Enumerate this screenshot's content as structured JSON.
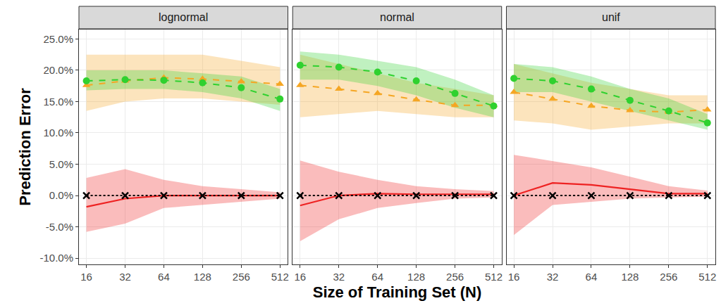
{
  "chart_data": {
    "type": "line",
    "x_label": "Size of Training Set (N)",
    "y_label": "Prediction Error",
    "x": [
      16,
      32,
      64,
      128,
      256,
      512
    ],
    "xlim": [
      14,
      590
    ],
    "xticks": [
      16,
      32,
      64,
      128,
      256,
      512
    ],
    "ylim": [
      -11,
      26.5
    ],
    "yticks": [
      {
        "value": -10,
        "label": "-10.0%"
      },
      {
        "value": -5,
        "label": "-5.0%"
      },
      {
        "value": 0,
        "label": "0.0%"
      },
      {
        "value": 5,
        "label": "5.0%"
      },
      {
        "value": 10,
        "label": "10.0%"
      },
      {
        "value": 15,
        "label": "15.0%"
      },
      {
        "value": 20,
        "label": "20.0%"
      },
      {
        "value": 25,
        "label": "25.0%"
      }
    ],
    "log": "x",
    "grid": true,
    "panels": [
      {
        "title": "lognormal",
        "series": [
          {
            "color": "#f5a623",
            "marker": "triangle",
            "line_style": "dashed",
            "values": [
              17.6,
              18.3,
              18.8,
              18.6,
              18.2,
              17.8
            ],
            "lower": [
              13.5,
              15.0,
              15.5,
              15.5,
              15.0,
              14.5
            ],
            "upper": [
              22.5,
              22.5,
              22.5,
              22.5,
              21.5,
              20.5
            ]
          },
          {
            "color": "#2fd12f",
            "marker": "circle",
            "line_style": "dashed",
            "values": [
              18.3,
              18.5,
              18.4,
              18.0,
              17.2,
              15.4
            ],
            "lower": [
              16.8,
              17.0,
              17.0,
              16.5,
              15.5,
              13.5
            ],
            "upper": [
              20.0,
              20.0,
              20.0,
              19.5,
              19.0,
              17.0
            ]
          },
          {
            "color": "#ee2222",
            "marker": "none",
            "line_style": "solid",
            "values": [
              -1.8,
              -0.5,
              0,
              0,
              0,
              0
            ],
            "lower": [
              -5.8,
              -4.5,
              -2.0,
              -1.5,
              -1.0,
              -0.5
            ],
            "upper": [
              2.8,
              4.2,
              2.5,
              1.5,
              1.0,
              0.5
            ]
          },
          {
            "color": "#000000",
            "marker": "x",
            "line_style": "dotted",
            "values": [
              0,
              0,
              0,
              0,
              0,
              0
            ]
          }
        ]
      },
      {
        "title": "normal",
        "series": [
          {
            "color": "#f5a623",
            "marker": "triangle",
            "line_style": "dashed",
            "values": [
              17.6,
              17.0,
              16.3,
              15.3,
              14.4,
              14.4
            ],
            "lower": [
              12.5,
              13.0,
              13.5,
              13.0,
              12.5,
              12.5
            ],
            "upper": [
              22.5,
              21.0,
              19.5,
              18.0,
              17.0,
              16.0
            ]
          },
          {
            "color": "#2fd12f",
            "marker": "circle",
            "line_style": "dashed",
            "values": [
              20.8,
              20.5,
              19.7,
              18.3,
              16.3,
              14.3
            ],
            "lower": [
              18.5,
              18.5,
              17.5,
              16.0,
              14.0,
              12.5
            ],
            "upper": [
              23.0,
              22.5,
              21.5,
              20.5,
              18.5,
              16.0
            ]
          },
          {
            "color": "#ee2222",
            "marker": "none",
            "line_style": "solid",
            "values": [
              -1.6,
              0,
              0.3,
              0.2,
              0.2,
              0.2
            ],
            "lower": [
              -7.3,
              -3.8,
              -2.0,
              -1.2,
              -0.5,
              -0.3
            ],
            "upper": [
              5.6,
              3.8,
              2.5,
              1.5,
              1.0,
              0.7
            ]
          },
          {
            "color": "#000000",
            "marker": "x",
            "line_style": "dotted",
            "values": [
              0,
              0,
              0,
              0,
              0,
              0
            ]
          }
        ]
      },
      {
        "title": "unif",
        "series": [
          {
            "color": "#f5a623",
            "marker": "triangle",
            "line_style": "dashed",
            "values": [
              16.5,
              15.4,
              14.3,
              13.6,
              13.3,
              13.7
            ],
            "lower": [
              12.0,
              11.5,
              10.5,
              11.0,
              11.5,
              11.5
            ],
            "upper": [
              21.0,
              19.5,
              18.0,
              17.0,
              16.0,
              16.0
            ]
          },
          {
            "color": "#2fd12f",
            "marker": "circle",
            "line_style": "dashed",
            "values": [
              18.7,
              18.3,
              17.0,
              15.2,
              13.5,
              11.6
            ],
            "lower": [
              16.5,
              16.5,
              15.0,
              13.5,
              12.0,
              10.5
            ],
            "upper": [
              21.0,
              20.5,
              19.0,
              17.0,
              15.5,
              13.0
            ]
          },
          {
            "color": "#ee2222",
            "marker": "none",
            "line_style": "solid",
            "values": [
              0,
              2.0,
              1.7,
              1.0,
              0.3,
              0.3
            ],
            "lower": [
              -6.3,
              -1.5,
              -1.0,
              -0.5,
              -0.3,
              -0.2
            ],
            "upper": [
              6.5,
              5.5,
              4.5,
              3.0,
              1.5,
              0.8
            ]
          },
          {
            "color": "#000000",
            "marker": "x",
            "line_style": "dotted",
            "values": [
              0,
              0,
              0,
              0,
              0,
              0
            ]
          }
        ]
      }
    ]
  }
}
